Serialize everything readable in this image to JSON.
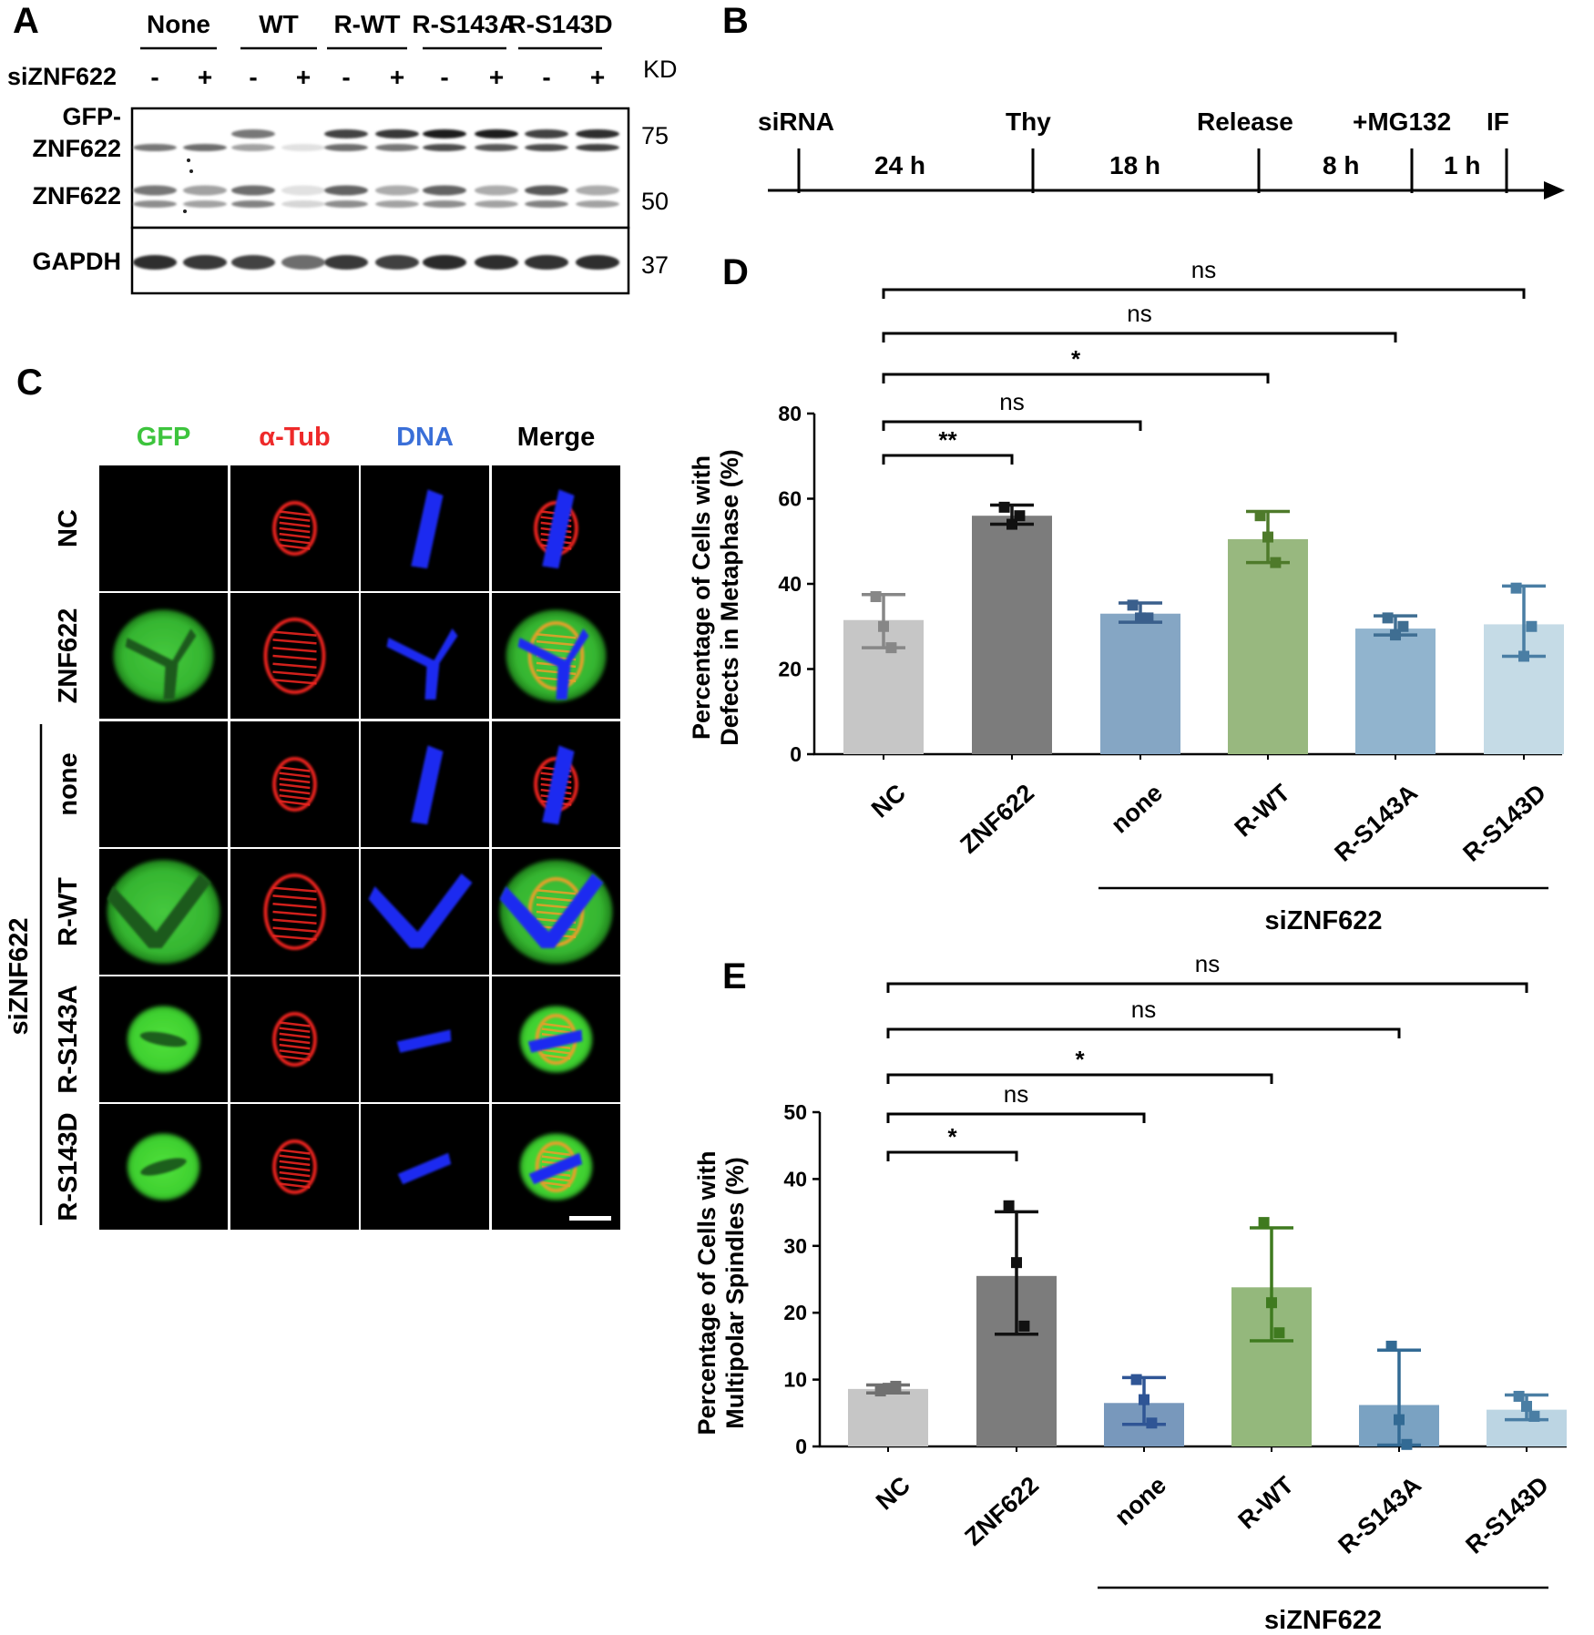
{
  "panel_letters": {
    "a": "A",
    "b": "B",
    "c": "C",
    "d": "D",
    "e": "E"
  },
  "panel_a": {
    "groups": [
      "None",
      "WT",
      "R-WT",
      "R-S143A",
      "R-S143D"
    ],
    "sirna_label": "siZNF622",
    "lane_signs": [
      "-",
      "+",
      "-",
      "+",
      "-",
      "+",
      "-",
      "+",
      "-",
      "+"
    ],
    "kd_label": "KD",
    "row_labels": {
      "gfp_line1": "GFP-",
      "gfp_line2": "ZNF622",
      "endo": "ZNF622",
      "gapdh": "GAPDH"
    },
    "mw_markers": [
      "75",
      "50",
      "37"
    ]
  },
  "panel_b": {
    "events": [
      "siRNA",
      "Thy",
      "Release",
      "+MG132",
      "IF"
    ],
    "durations": [
      "24 h",
      "18 h",
      "8 h",
      "1 h"
    ]
  },
  "panel_c": {
    "columns": [
      {
        "label": "GFP",
        "color": "#3dc43d"
      },
      {
        "label": "α-Tub",
        "color": "#ee2a2a"
      },
      {
        "label": "DNA",
        "color": "#3a6fd8"
      },
      {
        "label": "Merge",
        "color": "#000000"
      }
    ],
    "rows": [
      "NC",
      "ZNF622",
      "none",
      "R-WT",
      "R-S143A",
      "R-S143D"
    ],
    "group_label": "siZNF622",
    "gfp_positive": [
      false,
      true,
      false,
      true,
      true,
      true
    ],
    "cell_shape": [
      "bar",
      "tri",
      "bar",
      "v",
      "bar",
      "bar"
    ]
  },
  "chart_data": [
    {
      "type": "bar",
      "panel": "D",
      "categories": [
        "NC",
        "ZNF622",
        "none",
        "R-WT",
        "R-S143A",
        "R-S143D"
      ],
      "values": [
        31.5,
        56,
        33,
        50.5,
        29.5,
        30.5
      ],
      "error_low": [
        25,
        54,
        31,
        45,
        28,
        23
      ],
      "error_high": [
        37.5,
        58.5,
        35.5,
        57,
        32.5,
        39.5
      ],
      "points": [
        [
          37,
          30,
          25
        ],
        [
          58,
          54,
          56
        ],
        [
          35,
          32,
          32
        ],
        [
          56,
          51,
          45
        ],
        [
          32,
          28,
          30
        ],
        [
          39,
          23,
          30
        ]
      ],
      "colors": [
        "#c6c6c6",
        "#7c7c7c",
        "#85a6c4",
        "#98b87f",
        "#91b4ce",
        "#c5dbe6"
      ],
      "point_colors": [
        "#878787",
        "#111111",
        "#3a5f8c",
        "#4e7a2a",
        "#3f6e92",
        "#4a7ea4"
      ],
      "ylabel_line1": "Percentage of Cells with",
      "ylabel_line2": "Defects in Metaphase  (%)",
      "yticks": [
        0,
        20,
        40,
        60,
        80
      ],
      "ylim": [
        0,
        80
      ],
      "group_label": "siZNF622",
      "significance": [
        {
          "to": 1,
          "label": "**"
        },
        {
          "to": 2,
          "label": "ns"
        },
        {
          "to": 3,
          "label": "*"
        },
        {
          "to": 4,
          "label": "ns"
        },
        {
          "to": 5,
          "label": "ns"
        }
      ]
    },
    {
      "type": "bar",
      "panel": "E",
      "categories": [
        "NC",
        "ZNF622",
        "none",
        "R-WT",
        "R-S143A",
        "R-S143D"
      ],
      "values": [
        8.6,
        25.5,
        6.5,
        23.8,
        6.2,
        5.5
      ],
      "error_low": [
        8,
        16.8,
        3.3,
        15.8,
        0.2,
        4
      ],
      "error_high": [
        9.2,
        35.1,
        10.3,
        32.7,
        14.4,
        7.7
      ],
      "points": [
        [
          8.3,
          8.7,
          9
        ],
        [
          36,
          27.5,
          18
        ],
        [
          10,
          7,
          3.5
        ],
        [
          33.5,
          21.5,
          17
        ],
        [
          15,
          4,
          0.3
        ],
        [
          7.5,
          6,
          4.5
        ]
      ],
      "colors": [
        "#c6c6c6",
        "#7c7c7c",
        "#7898bc",
        "#94b87c",
        "#7aa2c2",
        "#bcd5e3"
      ],
      "point_colors": [
        "#707070",
        "#111111",
        "#2f5595",
        "#3f7a1f",
        "#326a94",
        "#4a7ea4"
      ],
      "ylabel_line1": "Percentage of Cells with",
      "ylabel_line2": "Multipolar Spindles (%)",
      "yticks": [
        0,
        10,
        20,
        30,
        40,
        50
      ],
      "ylim": [
        0,
        50
      ],
      "group_label": "siZNF622",
      "significance": [
        {
          "to": 1,
          "label": "*"
        },
        {
          "to": 2,
          "label": "ns"
        },
        {
          "to": 3,
          "label": "*"
        },
        {
          "to": 4,
          "label": "ns"
        },
        {
          "to": 5,
          "label": "ns"
        }
      ]
    }
  ]
}
